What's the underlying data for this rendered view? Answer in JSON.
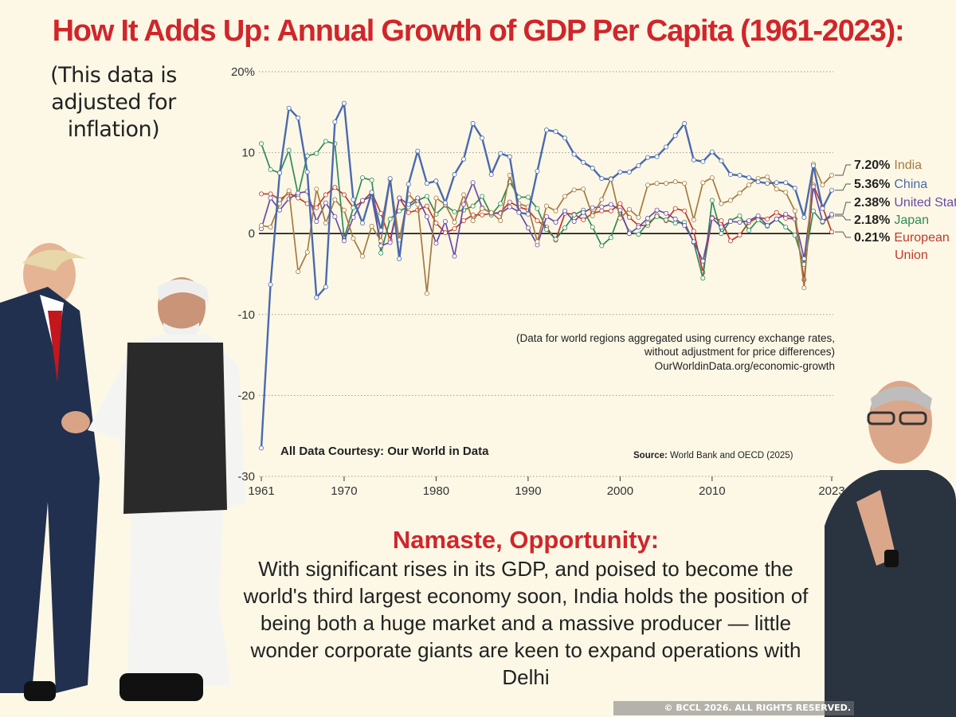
{
  "title": "How It Adds Up: Annual Growth of GDP Per Capita (1961-2023):",
  "note_left": "(This data is adjusted for inflation)",
  "bottom": {
    "heading": "Namaste, Opportunity:",
    "text": "With significant rises in its GDP, and poised to become the world's third largest economy soon, India holds the position of being both a huge market and a massive producer — little wonder corporate giants are keen to expand operations with Delhi"
  },
  "watermark": "© BCCL 2026. ALL RIGHTS RESERVED.",
  "chart_data": {
    "type": "line",
    "title": "How It Adds Up: Annual Growth of GDP Per Capita (1961-2023):",
    "xlim": [
      1961,
      2023
    ],
    "ylim": [
      -30,
      20
    ],
    "y_ticks": [
      "20%",
      "10",
      "0",
      "-10",
      "-20",
      "-30"
    ],
    "y_tick_values": [
      20,
      10,
      0,
      -10,
      -20,
      -30
    ],
    "x_ticks": [
      "1961",
      "1970",
      "1980",
      "1990",
      "2000",
      "2010",
      "2023"
    ],
    "grid": true,
    "legend_placement": "right (end labels)",
    "annotation": "(Data for world regions aggregated using currency exchange rates, without adjustment for price differences)",
    "annotation_link": "OurWorldinData.org/economic-growth",
    "courtesy": "All Data Courtesy:  Our World in Data",
    "source_label": "Source:",
    "source_text": "World Bank and OECD (2025)",
    "x_start": 1961,
    "series": [
      {
        "name": "India",
        "end_label": "7.20%",
        "color": "#a57a3f",
        "values": [
          1.0,
          0.8,
          3.7,
          5.3,
          -4.7,
          -2.3,
          5.5,
          1.3,
          4.2,
          2.9,
          -0.6,
          -2.8,
          0.9,
          -0.9,
          6.7,
          -0.8,
          4.9,
          3.6,
          -7.4,
          4.4,
          3.6,
          1.4,
          4.8,
          1.6,
          3.1,
          2.6,
          1.6,
          7.2,
          3.7,
          3.3,
          -1.0,
          3.4,
          2.8,
          4.6,
          5.4,
          5.5,
          2.2,
          4.2,
          6.8,
          1.9,
          3.0,
          2.0,
          6.0,
          6.2,
          6.2,
          6.4,
          6.2,
          1.7,
          6.3,
          6.9,
          3.7,
          4.1,
          5.0,
          6.0,
          6.8,
          7.0,
          5.5,
          5.1,
          2.8,
          -6.7,
          8.6,
          6.0,
          7.2
        ]
      },
      {
        "name": "China",
        "end_label": "5.36%",
        "color": "#4a6aaf",
        "values": [
          -26.5,
          -6.3,
          7.5,
          15.5,
          14.3,
          7.6,
          -7.9,
          -6.6,
          13.8,
          16.1,
          4.2,
          1.3,
          5.1,
          0.4,
          6.8,
          -3.1,
          6.1,
          10.2,
          6.2,
          6.5,
          3.8,
          7.3,
          9.2,
          13.6,
          11.8,
          7.3,
          9.9,
          9.5,
          2.6,
          2.4,
          7.7,
          12.8,
          12.6,
          11.8,
          9.8,
          8.8,
          8.1,
          6.8,
          6.7,
          7.6,
          7.6,
          8.4,
          9.4,
          9.5,
          10.7,
          12.1,
          13.6,
          9.1,
          8.9,
          10.1,
          9.0,
          7.3,
          7.2,
          6.9,
          6.4,
          6.2,
          6.3,
          6.3,
          5.6,
          2.0,
          8.4,
          3.1,
          5.36
        ]
      },
      {
        "name": "United States",
        "end_label": "2.38%",
        "color": "#6a4aa8",
        "values": [
          0.6,
          4.4,
          2.9,
          4.3,
          5.0,
          5.2,
          1.5,
          3.8,
          2.1,
          -0.9,
          2.0,
          4.1,
          4.6,
          -1.5,
          -1.1,
          4.4,
          3.6,
          4.4,
          2.1,
          -1.2,
          1.5,
          -2.8,
          3.6,
          6.3,
          3.2,
          2.5,
          2.5,
          3.3,
          2.7,
          0.7,
          -1.4,
          2.1,
          1.4,
          2.8,
          1.5,
          2.6,
          3.2,
          3.3,
          3.6,
          2.9,
          0.0,
          0.8,
          1.9,
          2.9,
          2.5,
          1.8,
          1.0,
          -1.0,
          -3.4,
          1.9,
          0.8,
          1.5,
          1.4,
          1.6,
          2.2,
          1.0,
          1.8,
          2.4,
          1.8,
          -3.1,
          5.8,
          1.5,
          2.38
        ]
      },
      {
        "name": "Japan",
        "end_label": "2.18%",
        "color": "#2e8b57",
        "values": [
          11.1,
          7.9,
          7.5,
          10.3,
          4.8,
          9.6,
          9.9,
          11.4,
          11.1,
          -0.6,
          3.2,
          6.9,
          6.6,
          -2.4,
          1.8,
          2.8,
          3.3,
          4.1,
          4.6,
          2.4,
          3.5,
          2.7,
          2.9,
          3.4,
          4.6,
          2.3,
          3.7,
          6.4,
          4.5,
          4.5,
          3.1,
          0.5,
          -0.7,
          0.7,
          2.3,
          2.9,
          0.8,
          -1.5,
          -0.5,
          2.6,
          0.2,
          -0.1,
          1.3,
          2.1,
          1.7,
          1.3,
          1.4,
          -1.1,
          -5.5,
          4.1,
          0.0,
          1.6,
          2.2,
          0.4,
          1.7,
          0.9,
          1.8,
          0.8,
          -0.2,
          -3.8,
          2.8,
          1.4,
          2.18
        ]
      },
      {
        "name": "European Union",
        "end_label": "0.21%",
        "color": "#c0392b",
        "values": [
          4.9,
          4.9,
          4.2,
          5.0,
          4.4,
          3.7,
          3.2,
          4.8,
          5.7,
          4.8,
          3.2,
          4.0,
          5.1,
          2.5,
          -0.8,
          4.4,
          2.6,
          2.9,
          3.4,
          1.3,
          0.1,
          0.6,
          1.6,
          2.3,
          2.3,
          2.5,
          2.6,
          3.9,
          3.3,
          2.9,
          1.6,
          0.8,
          -0.8,
          2.5,
          2.4,
          1.7,
          2.5,
          2.8,
          2.8,
          3.7,
          2.0,
          1.0,
          1.0,
          2.3,
          1.6,
          3.1,
          2.8,
          0.3,
          -4.8,
          2.0,
          1.6,
          -0.9,
          -0.2,
          1.4,
          2.0,
          1.8,
          2.6,
          1.9,
          1.8,
          -5.7,
          6.0,
          3.3,
          0.21
        ]
      }
    ]
  }
}
